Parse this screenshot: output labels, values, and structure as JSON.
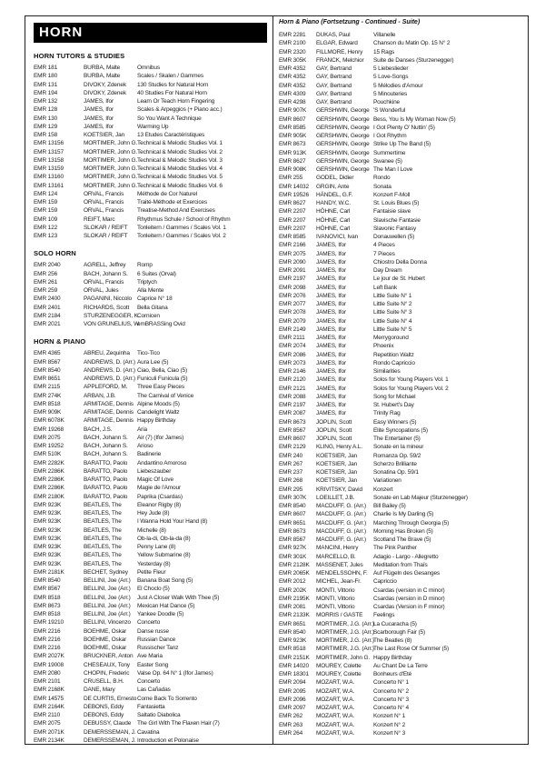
{
  "page_title": "HORN",
  "left_sections": [
    {
      "heading": "HORN TUTORS & STUDIES",
      "items": [
        [
          "EMR 181",
          "BURBA, Malte",
          "Omnibus"
        ],
        [
          "EMR 180",
          "BURBA, Malte",
          "Scales / Skalen / Gammes"
        ],
        [
          "EMR 131",
          "DIVOKY, Zdenek",
          "130 Studies for Natural Horn"
        ],
        [
          "EMR 194",
          "DIVOKY, Zdenek",
          "40 Studies For Natural Horn"
        ],
        [
          "EMR 132",
          "JAMES, Ifor",
          "Learn Or Teach Horn Fingering"
        ],
        [
          "EMR 128",
          "JAMES, Ifor",
          "Scales & Arpeggios (+ Piano acc.)"
        ],
        [
          "EMR 130",
          "JAMES, Ifor",
          "So You Want A Technique"
        ],
        [
          "EMR 129",
          "JAMES, Ifor",
          "Warming Up"
        ],
        [
          "EMR 158",
          "KOETSIER, Jan",
          "13 Etudes Caractéristiques"
        ],
        [
          "EMR 13156",
          "MORTIMER, John G.",
          "Technical & Melodic Studies Vol. 1"
        ],
        [
          "EMR 13157",
          "MORTIMER, John G.",
          "Technical & Melodic Studies Vol. 2"
        ],
        [
          "EMR 13158",
          "MORTIMER, John G.",
          "Technical & Melodic Studies Vol. 3"
        ],
        [
          "EMR 13159",
          "MORTIMER, John G.",
          "Technical & Melodic Studies Vol. 4"
        ],
        [
          "EMR 13160",
          "MORTIMER, John G.",
          "Technical & Melodic Studies Vol. 5"
        ],
        [
          "EMR 13161",
          "MORTIMER, John G.",
          "Technical & Melodic Studies Vol. 6"
        ],
        [
          "EMR 124",
          "ORVAL, Francis",
          "Méthode de Cor Naturel"
        ],
        [
          "EMR 159",
          "ORVAL, Francis",
          "Traité-Méthode et Exercices"
        ],
        [
          "EMR 159",
          "ORVAL, Francis",
          "Treatise-Method And Exercises"
        ],
        [
          "EMR 109",
          "REIFT, Marc",
          "Rhythmus Schule / School of Rhythm"
        ],
        [
          "EMR 122",
          "SLOKAR / REIFT",
          "Tonleitern / Gammes / Scales Vol. 1"
        ],
        [
          "EMR 123",
          "SLOKAR / REIFT",
          "Tonleitern / Gammes / Scales Vol. 2"
        ]
      ]
    },
    {
      "heading": "SOLO HORN",
      "items": [
        [
          "EMR 2040",
          "AGRELL, Jeffrey",
          "Romp"
        ],
        [
          "EMR 256",
          "BACH, Johann S.",
          "6 Suites (Orval)"
        ],
        [
          "EMR 261",
          "ORVAL, Francis",
          "Triptych"
        ],
        [
          "EMR 259",
          "ORVAL, Jules",
          "Alla Mente"
        ],
        [
          "EMR 2400",
          "PAGANINI, Niccolo",
          "Caprice N° 18"
        ],
        [
          "EMR 2401",
          "RICHARDS, Scott",
          "Bella Gitana"
        ],
        [
          "EMR 2184",
          "STURZENEGGER, K.",
          "Cornicen"
        ],
        [
          "EMR 2021",
          "VON GRUNELIUS, W.",
          "emBRASSing Ovid"
        ]
      ]
    },
    {
      "heading": "HORN & PIANO",
      "items": [
        [
          "EMR 4365",
          "ABREU, Zequinha",
          "Tico-Tico"
        ],
        [
          "EMR 8567",
          "ANDREWS, D. (Arr.)",
          "Aura Lee (5)"
        ],
        [
          "EMR 8540",
          "ANDREWS, D. (Arr.)",
          "Ciao, Bella, Ciao (5)"
        ],
        [
          "EMR 8651",
          "ANDREWS, D. (Arr.)",
          "Funiculi Funicula (5)"
        ],
        [
          "EMR 2115",
          "APPLEFORD, M.",
          "Three Easy Pieces"
        ],
        [
          "EMR 274K",
          "ARBAN, J.B.",
          "The Carnival of Venice"
        ],
        [
          "EMR 8518",
          "ARMITAGE, Dennis",
          "Alpine Moods (5)"
        ],
        [
          "EMR 909K",
          "ARMITAGE, Dennis",
          "Candelight Waltz"
        ],
        [
          "EMR 6078K",
          "ARMITAGE, Dennis",
          "Happy Birthday"
        ],
        [
          "EMR 19268",
          "BACH, J.S.",
          "Aria"
        ],
        [
          "EMR 2075",
          "BACH, Johann S.",
          "Air (7) (Ifor James)"
        ],
        [
          "EMR 19252",
          "BACH, Johann S.",
          "Arioso"
        ],
        [
          "EMR 510K",
          "BACH, Johann S.",
          "Badinerie"
        ],
        [
          "EMR 2282K",
          "BARATTO, Paolo",
          "Andantino Amoroso"
        ],
        [
          "EMR 2286K",
          "BARATTO, Paolo",
          "Liebeszauber"
        ],
        [
          "EMR 2286K",
          "BARATTO, Paolo",
          "Magic Of Love"
        ],
        [
          "EMR 2286K",
          "BARATTO, Paolo",
          "Magie de l'Amour"
        ],
        [
          "EMR 2180K",
          "BARATTO, Paolo",
          "Paprika (Csardas)"
        ],
        [
          "EMR 923K",
          "BEATLES, The",
          "Eleanor Rigby (8)"
        ],
        [
          "EMR 923K",
          "BEATLES, The",
          "Hey Jude (8)"
        ],
        [
          "EMR 923K",
          "BEATLES, The",
          "I Wanna Hold Your Hand (8)"
        ],
        [
          "EMR 923K",
          "BEATLES, The",
          "Michelle (8)"
        ],
        [
          "EMR 923K",
          "BEATLES, The",
          "Ob-la-di, Ob-la-da (8)"
        ],
        [
          "EMR 923K",
          "BEATLES, The",
          "Penny Lane (8)"
        ],
        [
          "EMR 923K",
          "BEATLES, The",
          "Yellow Submarine (8)"
        ],
        [
          "EMR 923K",
          "BEATLES, The",
          "Yesterday (8)"
        ],
        [
          "EMR 2181K",
          "BECHET, Sydney",
          "Petite Fleur"
        ],
        [
          "EMR 8540",
          "BELLINI, Joe (Arr.)",
          "Banana Boat Song (5)"
        ],
        [
          "EMR 8567",
          "BELLINI, Joe (Arr.)",
          "El Choclo (5)"
        ],
        [
          "EMR 8518",
          "BELLINI, Joe (Arr.)",
          "Just A Closer Walk With Thee (5)"
        ],
        [
          "EMR 8673",
          "BELLINI, Joe (Arr.)",
          "Mexican Hat Dance (5)"
        ],
        [
          "EMR 8518",
          "BELLINI, Joe (Arr.)",
          "Yankee Doodle (5)"
        ],
        [
          "EMR 19210",
          "BELLINI, Vincenzo",
          "Concerto"
        ],
        [
          "EMR 2216",
          "BOEHME, Oskar",
          "Danse russe"
        ],
        [
          "EMR 2216",
          "BOEHME, Oskar",
          "Russian Dance"
        ],
        [
          "EMR 2216",
          "BOEHME, Oskar",
          "Russischer Tanz"
        ],
        [
          "EMR 2027K",
          "BRUCKNER, Anton",
          "Ave Maria"
        ],
        [
          "EMR 19008",
          "CHESEAUX, Tony",
          "Easter Song"
        ],
        [
          "EMR 2080",
          "CHOPIN, Frederic",
          "Valse Op. 64 N° 1 (Ifor James)"
        ],
        [
          "EMR 2101",
          "CRUSELL, B.H.",
          "Concerto"
        ],
        [
          "EMR 2168K",
          "DANE, Mary",
          "Las Cañadas"
        ],
        [
          "EMR 14575",
          "DE CURTIS, Ernesto",
          "Come Back To Sorrento"
        ],
        [
          "EMR 2164K",
          "DEBONS, Eddy",
          "Fantasietta"
        ],
        [
          "EMR 2110",
          "DEBONS, Eddy",
          "Saltatio Diabolica"
        ],
        [
          "EMR 2075",
          "DEBUSSY, Claude",
          "The Girl With The Flaxen Hair (7)"
        ],
        [
          "EMR 2071K",
          "DEMERSSEMAN, J.",
          "Cavatina"
        ],
        [
          "EMR 2134K",
          "DEMERSSEMAN, J.",
          "Introduction et Polonaise"
        ]
      ]
    }
  ],
  "right_column": {
    "heading": "Horn & Piano (Fortsetzung - Continued - Suite)",
    "items": [
      [
        "EMR 2281",
        "DUKAS, Paul",
        "Villanelle"
      ],
      [
        "EMR 2100",
        "ELGAR, Edward",
        "Chanson du Matin Op. 15 N° 2"
      ],
      [
        "EMR 2320",
        "FILLMORE, Henry",
        "15 Rags"
      ],
      [
        "EMR 305K",
        "FRANCK, Melchior",
        "Suite de Danses (Sturzenegger)"
      ],
      [
        "EMR 4352",
        "GAY, Bertrand",
        "5 Liebeslieder"
      ],
      [
        "EMR 4352",
        "GAY, Bertrand",
        "5 Love-Songs"
      ],
      [
        "EMR 4352",
        "GAY, Bertrand",
        "5 Mélodies d'Amour"
      ],
      [
        "EMR 4309",
        "GAY, Bertrand",
        "5 Minouteries"
      ],
      [
        "EMR 4298",
        "GAY, Bertrand",
        "Pouchkine"
      ],
      [
        "EMR 907K",
        "GERSHWIN, George",
        "'S Wonderful"
      ],
      [
        "EMR 8607",
        "GERSHWIN, George",
        "Bess, You Is My Woman Now (5)"
      ],
      [
        "EMR 8585",
        "GERSHWIN, George",
        "I Got Plenty O' Nuttin' (5)"
      ],
      [
        "EMR 905K",
        "GERSHWIN, George",
        "I Got Rhythm"
      ],
      [
        "EMR 8673",
        "GERSHWIN, George",
        "Strike Up The Band (5)"
      ],
      [
        "EMR 913K",
        "GERSHWIN, George",
        "Summertime"
      ],
      [
        "EMR 8627",
        "GERSHWIN, George",
        "Swanee (5)"
      ],
      [
        "EMR 908K",
        "GERSHWIN, George",
        "The Man I Love"
      ],
      [
        "EMR 255",
        "GODEL, Didier",
        "Rondo"
      ],
      [
        "EMR 14032",
        "GRGIN, Ante",
        "Sonata"
      ],
      [
        "EMR 19526",
        "HÄNDEL, G.F.",
        "Konzert F-Moll"
      ],
      [
        "EMR 8627",
        "HANDY, W.C.",
        "St. Louis Blues (5)"
      ],
      [
        "EMR 2207",
        "HÖHNE, Carl",
        "Fantaisie slave"
      ],
      [
        "EMR 2207",
        "HÖHNE, Carl",
        "Slavische Fantasie"
      ],
      [
        "EMR 2207",
        "HÖHNE, Carl",
        "Slavonic Fantasy"
      ],
      [
        "EMR 8585",
        "IVANOVICI, Ivan",
        "Donauwellen (5)"
      ],
      [
        "EMR 2166",
        "JAMES, Ifor",
        "4 Pieces"
      ],
      [
        "EMR 2075",
        "JAMES, Ifor",
        "7 Pieces"
      ],
      [
        "EMR 2090",
        "JAMES, Ifor",
        "Chiostro Della Donna"
      ],
      [
        "EMR 2091",
        "JAMES, Ifor",
        "Day Dream"
      ],
      [
        "EMR 2197",
        "JAMES, Ifor",
        "Le jour de St. Hubert"
      ],
      [
        "EMR 2098",
        "JAMES, Ifor",
        "Left Bank"
      ],
      [
        "EMR 2076",
        "JAMES, Ifor",
        "Little Suite N° 1"
      ],
      [
        "EMR 2077",
        "JAMES, Ifor",
        "Little Suite N° 2"
      ],
      [
        "EMR 2078",
        "JAMES, Ifor",
        "Little Suite N° 3"
      ],
      [
        "EMR 2079",
        "JAMES, Ifor",
        "Little Suite N° 4"
      ],
      [
        "EMR 2149",
        "JAMES, Ifor",
        "Little Suite N° 5"
      ],
      [
        "EMR 2111",
        "JAMES, Ifor",
        "Merrygoround"
      ],
      [
        "EMR 2074",
        "JAMES, Ifor",
        "Phoenix"
      ],
      [
        "EMR 2086",
        "JAMES, Ifor",
        "Repetition Waltz"
      ],
      [
        "EMR 2073",
        "JAMES, Ifor",
        "Rondo Capriccio"
      ],
      [
        "EMR 2146",
        "JAMES, Ifor",
        "Similarities"
      ],
      [
        "EMR 2120",
        "JAMES, Ifor",
        "Solos for Young Players Vol. 1"
      ],
      [
        "EMR 2121",
        "JAMES, Ifor",
        "Solos for Young Players Vol. 2"
      ],
      [
        "EMR 2088",
        "JAMES, Ifor",
        "Song for Michael"
      ],
      [
        "EMR 2197",
        "JAMES, Ifor",
        "St. Hubert's Day"
      ],
      [
        "EMR 2087",
        "JAMES, Ifor",
        "Trinity Rag"
      ],
      [
        "EMR 8673",
        "JOPLIN, Scott",
        "Easy Winners (5)"
      ],
      [
        "EMR 8567",
        "JOPLIN, Scott",
        "Elite Syncopations (5)"
      ],
      [
        "EMR 8607",
        "JOPLIN, Scott",
        "The Entertainer (5)"
      ],
      [
        "EMR 2129",
        "KLING, Henry A.L.",
        "Sonate en la mineur"
      ],
      [
        "EMR 240",
        "KOETSIER, Jan",
        "Romanza Op. 59/2"
      ],
      [
        "EMR 267",
        "KOETSIER, Jan",
        "Scherzo Brilliante"
      ],
      [
        "EMR 237",
        "KOETSIER, Jan",
        "Sonatina Op. 59/1"
      ],
      [
        "EMR 268",
        "KOETSIER, Jan",
        "Variationen"
      ],
      [
        "EMR 295",
        "KRIVITSKY, David",
        "Konzert"
      ],
      [
        "EMR 307K",
        "LOEILLET, J.B.",
        "Sonate en Lab Majeur (Sturzenegger)"
      ],
      [
        "EMR 8540",
        "MACDUFF, G. (Arr.)",
        "Bill Bailey (5)"
      ],
      [
        "EMR 8607",
        "MACDUFF, G. (Arr.)",
        "Charlie Is My Darling (5)"
      ],
      [
        "EMR 8651",
        "MACDUFF, G. (Arr.)",
        "Marching Through Georgia (5)"
      ],
      [
        "EMR 8673",
        "MACDUFF, G. (Arr.)",
        "Morning Has Broken (5)"
      ],
      [
        "EMR 8567",
        "MACDUFF, G. (Arr.)",
        "Scotland The Brave (5)"
      ],
      [
        "EMR 927K",
        "MANCINI, Henry",
        "The Pink Panther"
      ],
      [
        "EMR 301K",
        "MARCELLO, B.",
        "Adagio - Largo - Allegretto"
      ],
      [
        "EMR 2128K",
        "MASSENET, Jules",
        "Meditation from Thaïs"
      ],
      [
        "EMR 2065K",
        "MENDELSSOHN, F.",
        "Auf Flügeln des Gesanges"
      ],
      [
        "EMR 2012",
        "MICHEL, Jean-Fr.",
        "Capriccio"
      ],
      [
        "EMR 202K",
        "MONTI, Vittorio",
        "Csardas (version in C minor)"
      ],
      [
        "EMR 2195K",
        "MONTI, Vittorio",
        "Csardas (version in D minor)"
      ],
      [
        "EMR 2081",
        "MONTI, Vittorio",
        "Csardas (Version in F minor)"
      ],
      [
        "EMR 2133K",
        "MORRIS / GASTE",
        "Feelings"
      ],
      [
        "EMR 8651",
        "MORTIMER, J.G. (Arr.)",
        "La Cucaracha (5)"
      ],
      [
        "EMR 8540",
        "MORTIMER, J.G. (Arr.)",
        "Scarborough Fair (5)"
      ],
      [
        "EMR 923K",
        "MORTIMER, J.G. (Arr.)",
        "The Beatles (8)"
      ],
      [
        "EMR 8518",
        "MORTIMER, J.G. (Arr.)",
        "The Last Rose Of Summer (5)"
      ],
      [
        "EMR 2151K",
        "MORTIMER, John G.",
        "Happy Birthday"
      ],
      [
        "EMR 14020",
        "MOUREY, Colette",
        "Au Chant De La Terre"
      ],
      [
        "EMR 18301",
        "MOUREY, Colette",
        "Bonheurs d'Eté"
      ],
      [
        "EMR 2094",
        "MOZART, W.A.",
        "Concerto N° 1"
      ],
      [
        "EMR 2095",
        "MOZART, W.A.",
        "Concerto N° 2"
      ],
      [
        "EMR 2096",
        "MOZART, W.A.",
        "Concerto N° 3"
      ],
      [
        "EMR 2097",
        "MOZART, W.A.",
        "Concerto N° 4"
      ],
      [
        "EMR 262",
        "MOZART, W.A.",
        "Konzert N° 1"
      ],
      [
        "EMR 263",
        "MOZART, W.A.",
        "Konzert N° 2"
      ],
      [
        "EMR 264",
        "MOZART, W.A.",
        "Konzert N° 3"
      ]
    ]
  }
}
